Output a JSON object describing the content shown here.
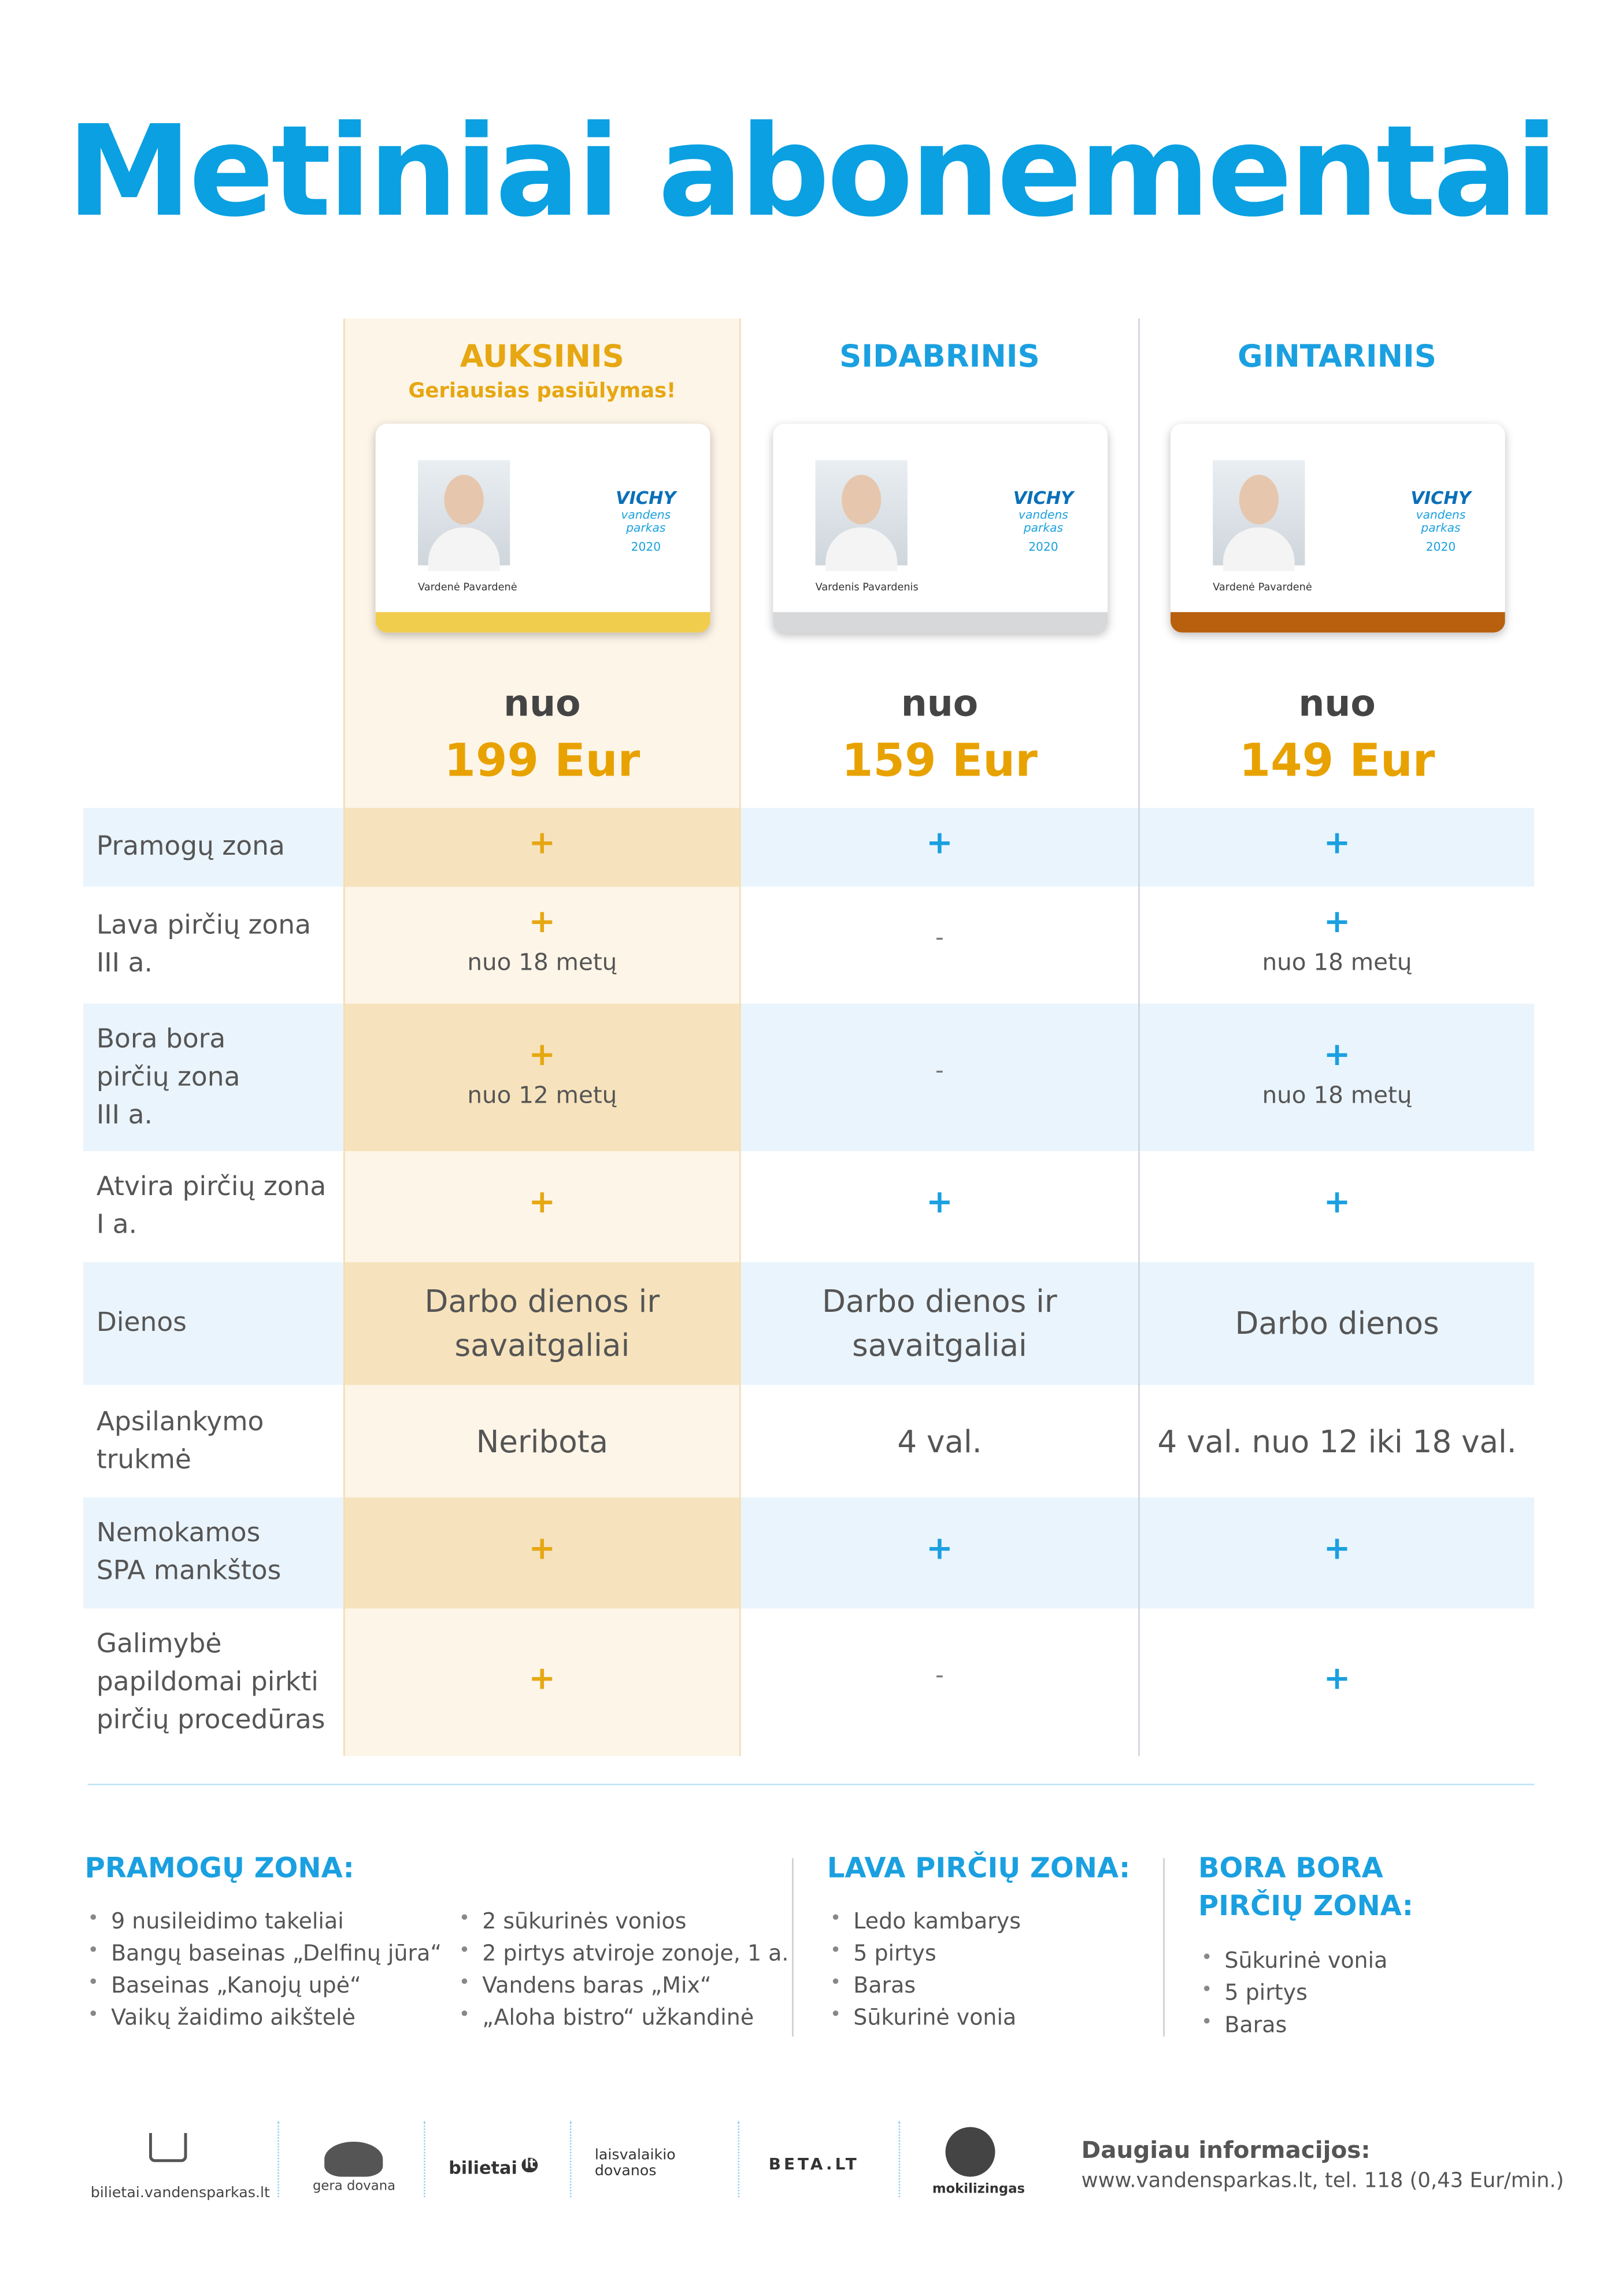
{
  "title": "Metiniai abonementai",
  "plans": [
    {
      "name": "AUKSINIS",
      "subtitle": "Geriausias pasiūlymas!",
      "card_name": "Vardenė Pavardenė",
      "card_year": "2020",
      "price_prefix": "nuo",
      "price": "199 Eur",
      "color": "#f1cd4e"
    },
    {
      "name": "SIDABRINIS",
      "card_name": "Vardenis Pavardenis",
      "card_year": "2020",
      "price_prefix": "nuo",
      "price": "159 Eur",
      "color": "#d6d8da"
    },
    {
      "name": "GINTARINIS",
      "card_name": "Vardenė Pavardenė",
      "card_year": "2020",
      "price_prefix": "nuo",
      "price": "149 Eur",
      "color": "#b8600e"
    }
  ],
  "card_logo": {
    "brand": "VICHY",
    "sub": "vandens parkas"
  },
  "rows": [
    {
      "label": [
        "Pramogų zona"
      ],
      "cells": [
        {
          "mark": "+"
        },
        {
          "mark": "+"
        },
        {
          "mark": "+"
        }
      ]
    },
    {
      "label": [
        "Lava pirčių zona",
        "III a."
      ],
      "cells": [
        {
          "mark": "+",
          "note": "nuo 18 metų"
        },
        {
          "mark": "-"
        },
        {
          "mark": "+",
          "note": "nuo 18 metų"
        }
      ]
    },
    {
      "label": [
        "Bora bora",
        "pirčių zona",
        "III a."
      ],
      "cells": [
        {
          "mark": "+",
          "note": "nuo 12 metų"
        },
        {
          "mark": "-"
        },
        {
          "mark": "+",
          "note": "nuo 18 metų"
        }
      ]
    },
    {
      "label": [
        "Atvira pirčių zona",
        "I a."
      ],
      "cells": [
        {
          "mark": "+"
        },
        {
          "mark": "+"
        },
        {
          "mark": "+"
        }
      ]
    },
    {
      "label": [
        "Dienos"
      ],
      "cells": [
        {
          "text": [
            "Darbo dienos ir",
            "savaitgaliai"
          ]
        },
        {
          "text": [
            "Darbo dienos ir",
            "savaitgaliai"
          ]
        },
        {
          "text": [
            "Darbo dienos"
          ]
        }
      ]
    },
    {
      "label": [
        "Apsilankymo",
        "trukmė"
      ],
      "cells": [
        {
          "text": [
            "Neribota"
          ]
        },
        {
          "text": [
            "4 val."
          ]
        },
        {
          "text": [
            "4 val. nuo 12 iki 18 val."
          ]
        }
      ]
    },
    {
      "label": [
        "Nemokamos",
        "SPA mankštos"
      ],
      "cells": [
        {
          "mark": "+"
        },
        {
          "mark": "+"
        },
        {
          "mark": "+"
        }
      ]
    },
    {
      "label": [
        "Galimybė",
        "papildomai pirkti",
        "pirčių procedūras"
      ],
      "cells": [
        {
          "mark": "+"
        },
        {
          "mark": "-"
        },
        {
          "mark": "+"
        }
      ]
    }
  ],
  "sections": [
    {
      "title": [
        "PRAMOGŲ ZONA:"
      ],
      "columns": [
        [
          "9 nusileidimo takeliai",
          "Bangų baseinas „Delfinų jūra“",
          "Baseinas „Kanojų upė“",
          "Vaikų žaidimo aikštelė"
        ],
        [
          "2 sūkurinės vonios",
          "2 pirtys atviroje zonoje, 1 a.",
          "Vandens baras „Mix“",
          "„Aloha bistro“ užkandinė"
        ]
      ]
    },
    {
      "title": [
        "LAVA PIRČIŲ ZONA:"
      ],
      "columns": [
        [
          "Ledo kambarys",
          "5 pirtys",
          "Baras",
          "Sūkurinė vonia"
        ]
      ]
    },
    {
      "title": [
        "BORA BORA",
        "PIRČIŲ ZONA:"
      ],
      "columns": [
        [
          "Sūkurinė vonia",
          "5 pirtys",
          "Baras"
        ]
      ]
    }
  ],
  "footer": {
    "logos": [
      "bilietai.vandensparkas.lt",
      "gera dovana",
      "bilietai",
      "lt",
      "laisvalaikio dovanos",
      "BETA.LT",
      "mokilizingas"
    ],
    "info_title": "Daugiau informacijos:",
    "info_text": "www.vandensparkas.lt, tel. 118 (0,43 Eur/min.)"
  }
}
